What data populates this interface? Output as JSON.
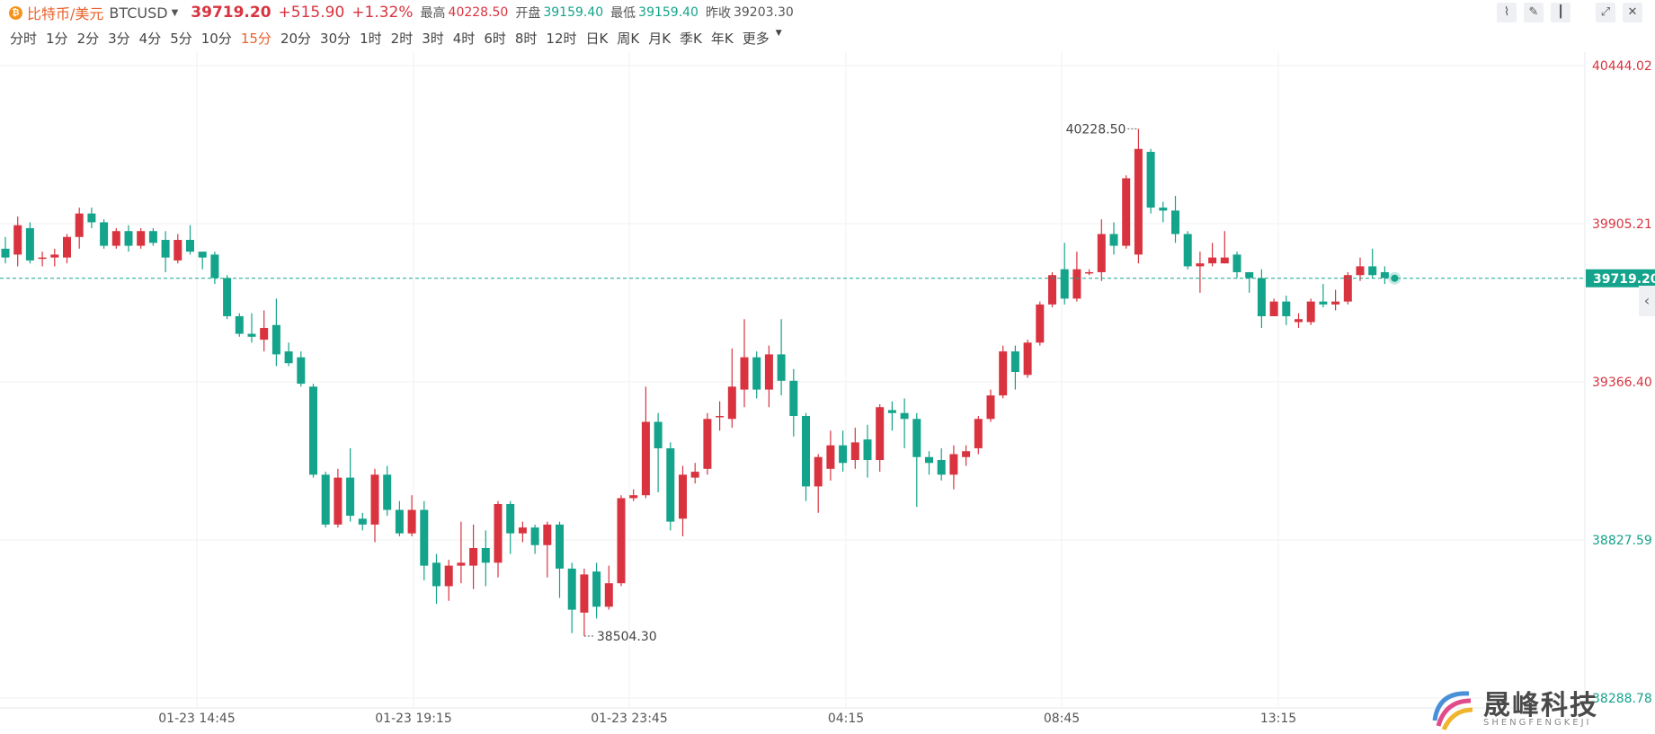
{
  "header": {
    "coin_icon": "bitcoin-icon",
    "name": "比特币/美元",
    "symbol": "BTCUSD",
    "price": "39719.20",
    "change": "+515.90",
    "change_pct": "+1.32%",
    "high_label": "最高",
    "high_value": "40228.50",
    "open_label": "开盘",
    "open_value": "39159.40",
    "low_label": "最低",
    "low_value": "39159.40",
    "prev_close_label": "昨收",
    "prev_close_value": "39203.30"
  },
  "toolbar": {
    "icons": [
      "line-chart-icon",
      "draw-pen-icon",
      "candle-chart-icon",
      "fullscreen-icon",
      "close-icon"
    ]
  },
  "periods": {
    "items": [
      "分时",
      "1分",
      "2分",
      "3分",
      "4分",
      "5分",
      "10分",
      "15分",
      "20分",
      "30分",
      "1时",
      "2时",
      "3时",
      "4时",
      "6时",
      "8时",
      "12时",
      "日K",
      "周K",
      "月K",
      "季K",
      "年K",
      "更多"
    ],
    "active": "15分"
  },
  "colors": {
    "up": "#d9333f",
    "down": "#14a38b",
    "accent": "#e8622c"
  },
  "logo": {
    "name": "晟峰科技",
    "sub": "SHENGFENGKEJI"
  },
  "chart_data": {
    "type": "candlestick",
    "y_ticks": [
      "40444.02",
      "39905.21",
      "39366.40",
      "38827.59",
      "38288.78"
    ],
    "ylim": [
      38288.78,
      40444.02
    ],
    "x_ticks": [
      "01-23 14:45",
      "01-23 19:15",
      "01-23 23:45",
      "04:15",
      "08:45",
      "13:15"
    ],
    "current_price": "39719.20",
    "high_marker": "40228.50",
    "low_marker": "38504.30",
    "candles": [
      [
        39820,
        39790,
        39860,
        39770
      ],
      [
        39800,
        39900,
        39930,
        39760
      ],
      [
        39890,
        39780,
        39910,
        39770
      ],
      [
        39790,
        39790,
        39810,
        39760
      ],
      [
        39790,
        39800,
        39820,
        39760
      ],
      [
        39790,
        39860,
        39870,
        39770
      ],
      [
        39860,
        39940,
        39960,
        39820
      ],
      [
        39940,
        39910,
        39960,
        39890
      ],
      [
        39910,
        39830,
        39920,
        39820
      ],
      [
        39830,
        39880,
        39890,
        39820
      ],
      [
        39880,
        39830,
        39900,
        39810
      ],
      [
        39830,
        39880,
        39890,
        39820
      ],
      [
        39880,
        39840,
        39890,
        39830
      ],
      [
        39850,
        39790,
        39880,
        39740
      ],
      [
        39780,
        39850,
        39870,
        39770
      ],
      [
        39850,
        39810,
        39900,
        39800
      ],
      [
        39810,
        39790,
        39810,
        39750
      ],
      [
        39800,
        39720,
        39810,
        39700
      ],
      [
        39720,
        39590,
        39730,
        39580
      ],
      [
        39590,
        39530,
        39600,
        39520
      ],
      [
        39530,
        39520,
        39600,
        39500
      ],
      [
        39510,
        39550,
        39610,
        39470
      ],
      [
        39560,
        39460,
        39650,
        39420
      ],
      [
        39470,
        39430,
        39500,
        39420
      ],
      [
        39450,
        39360,
        39470,
        39350
      ],
      [
        39350,
        39050,
        39360,
        39040
      ],
      [
        39050,
        38880,
        39060,
        38870
      ],
      [
        38880,
        39040,
        39070,
        38870
      ],
      [
        39040,
        38910,
        39140,
        38890
      ],
      [
        38900,
        38880,
        38920,
        38860
      ],
      [
        38880,
        39050,
        39070,
        38820
      ],
      [
        39050,
        38930,
        39080,
        38910
      ],
      [
        38930,
        38850,
        38960,
        38840
      ],
      [
        38850,
        38930,
        38980,
        38840
      ],
      [
        38930,
        38740,
        38960,
        38690
      ],
      [
        38750,
        38670,
        38780,
        38610
      ],
      [
        38670,
        38740,
        38760,
        38620
      ],
      [
        38740,
        38750,
        38890,
        38680
      ],
      [
        38740,
        38800,
        38880,
        38660
      ],
      [
        38800,
        38750,
        38860,
        38670
      ],
      [
        38750,
        38950,
        38960,
        38700
      ],
      [
        38950,
        38850,
        38960,
        38780
      ],
      [
        38850,
        38870,
        38890,
        38820
      ],
      [
        38870,
        38810,
        38880,
        38780
      ],
      [
        38810,
        38880,
        38890,
        38700
      ],
      [
        38880,
        38730,
        38890,
        38630
      ],
      [
        38730,
        38590,
        38750,
        38510
      ],
      [
        38580,
        38710,
        38730,
        38500
      ],
      [
        38720,
        38600,
        38750,
        38560
      ],
      [
        38600,
        38680,
        38740,
        38590
      ],
      [
        38680,
        38970,
        38980,
        38670
      ],
      [
        38970,
        38980,
        39000,
        38960
      ],
      [
        38980,
        39230,
        39350,
        38970
      ],
      [
        39230,
        39140,
        39260,
        38990
      ],
      [
        39140,
        38890,
        39160,
        38860
      ],
      [
        38900,
        39050,
        39080,
        38840
      ],
      [
        39040,
        39060,
        39090,
        39020
      ],
      [
        39070,
        39240,
        39260,
        39050
      ],
      [
        39250,
        39250,
        39300,
        39200
      ],
      [
        39240,
        39350,
        39480,
        39210
      ],
      [
        39340,
        39450,
        39580,
        39280
      ],
      [
        39450,
        39340,
        39470,
        39310
      ],
      [
        39340,
        39460,
        39490,
        39280
      ],
      [
        39460,
        39370,
        39580,
        39320
      ],
      [
        39370,
        39250,
        39410,
        39180
      ],
      [
        39250,
        39010,
        39260,
        38960
      ],
      [
        39010,
        39110,
        39120,
        38920
      ],
      [
        39070,
        39150,
        39200,
        39030
      ],
      [
        39150,
        39090,
        39200,
        39060
      ],
      [
        39100,
        39160,
        39210,
        39070
      ],
      [
        39170,
        39100,
        39220,
        39040
      ],
      [
        39100,
        39280,
        39290,
        39060
      ],
      [
        39270,
        39260,
        39300,
        39200
      ],
      [
        39260,
        39240,
        39310,
        39140
      ],
      [
        39240,
        39110,
        39260,
        38940
      ],
      [
        39110,
        39090,
        39130,
        39050
      ],
      [
        39100,
        39050,
        39140,
        39030
      ],
      [
        39050,
        39120,
        39150,
        39000
      ],
      [
        39110,
        39130,
        39150,
        39080
      ],
      [
        39140,
        39240,
        39250,
        39120
      ],
      [
        39240,
        39320,
        39340,
        39230
      ],
      [
        39320,
        39470,
        39490,
        39310
      ],
      [
        39470,
        39400,
        39490,
        39340
      ],
      [
        39390,
        39500,
        39510,
        39380
      ],
      [
        39500,
        39630,
        39640,
        39490
      ],
      [
        39630,
        39730,
        39740,
        39620
      ],
      [
        39750,
        39650,
        39840,
        39630
      ],
      [
        39650,
        39750,
        39810,
        39640
      ],
      [
        39740,
        39740,
        39750,
        39730
      ],
      [
        39740,
        39870,
        39920,
        39710
      ],
      [
        39870,
        39830,
        39910,
        39800
      ],
      [
        39830,
        40060,
        40070,
        39820
      ],
      [
        39800,
        40160,
        40228.5,
        39770
      ],
      [
        40150,
        39960,
        40160,
        39940
      ],
      [
        39960,
        39950,
        39980,
        39910
      ],
      [
        39950,
        39870,
        40000,
        39840
      ],
      [
        39870,
        39760,
        39880,
        39750
      ],
      [
        39760,
        39770,
        39810,
        39670
      ],
      [
        39770,
        39790,
        39840,
        39760
      ],
      [
        39770,
        39790,
        39880,
        39770
      ],
      [
        39800,
        39740,
        39810,
        39720
      ],
      [
        39740,
        39720,
        39740,
        39670
      ],
      [
        39720,
        39590,
        39750,
        39550
      ],
      [
        39590,
        39640,
        39650,
        39600
      ],
      [
        39640,
        39590,
        39660,
        39560
      ],
      [
        39570,
        39580,
        39600,
        39550
      ],
      [
        39570,
        39640,
        39650,
        39560
      ],
      [
        39640,
        39630,
        39700,
        39620
      ],
      [
        39630,
        39640,
        39680,
        39610
      ],
      [
        39640,
        39730,
        39740,
        39630
      ],
      [
        39730,
        39760,
        39790,
        39710
      ],
      [
        39760,
        39730,
        39820,
        39720
      ],
      [
        39740,
        39720,
        39760,
        39700
      ]
    ]
  }
}
